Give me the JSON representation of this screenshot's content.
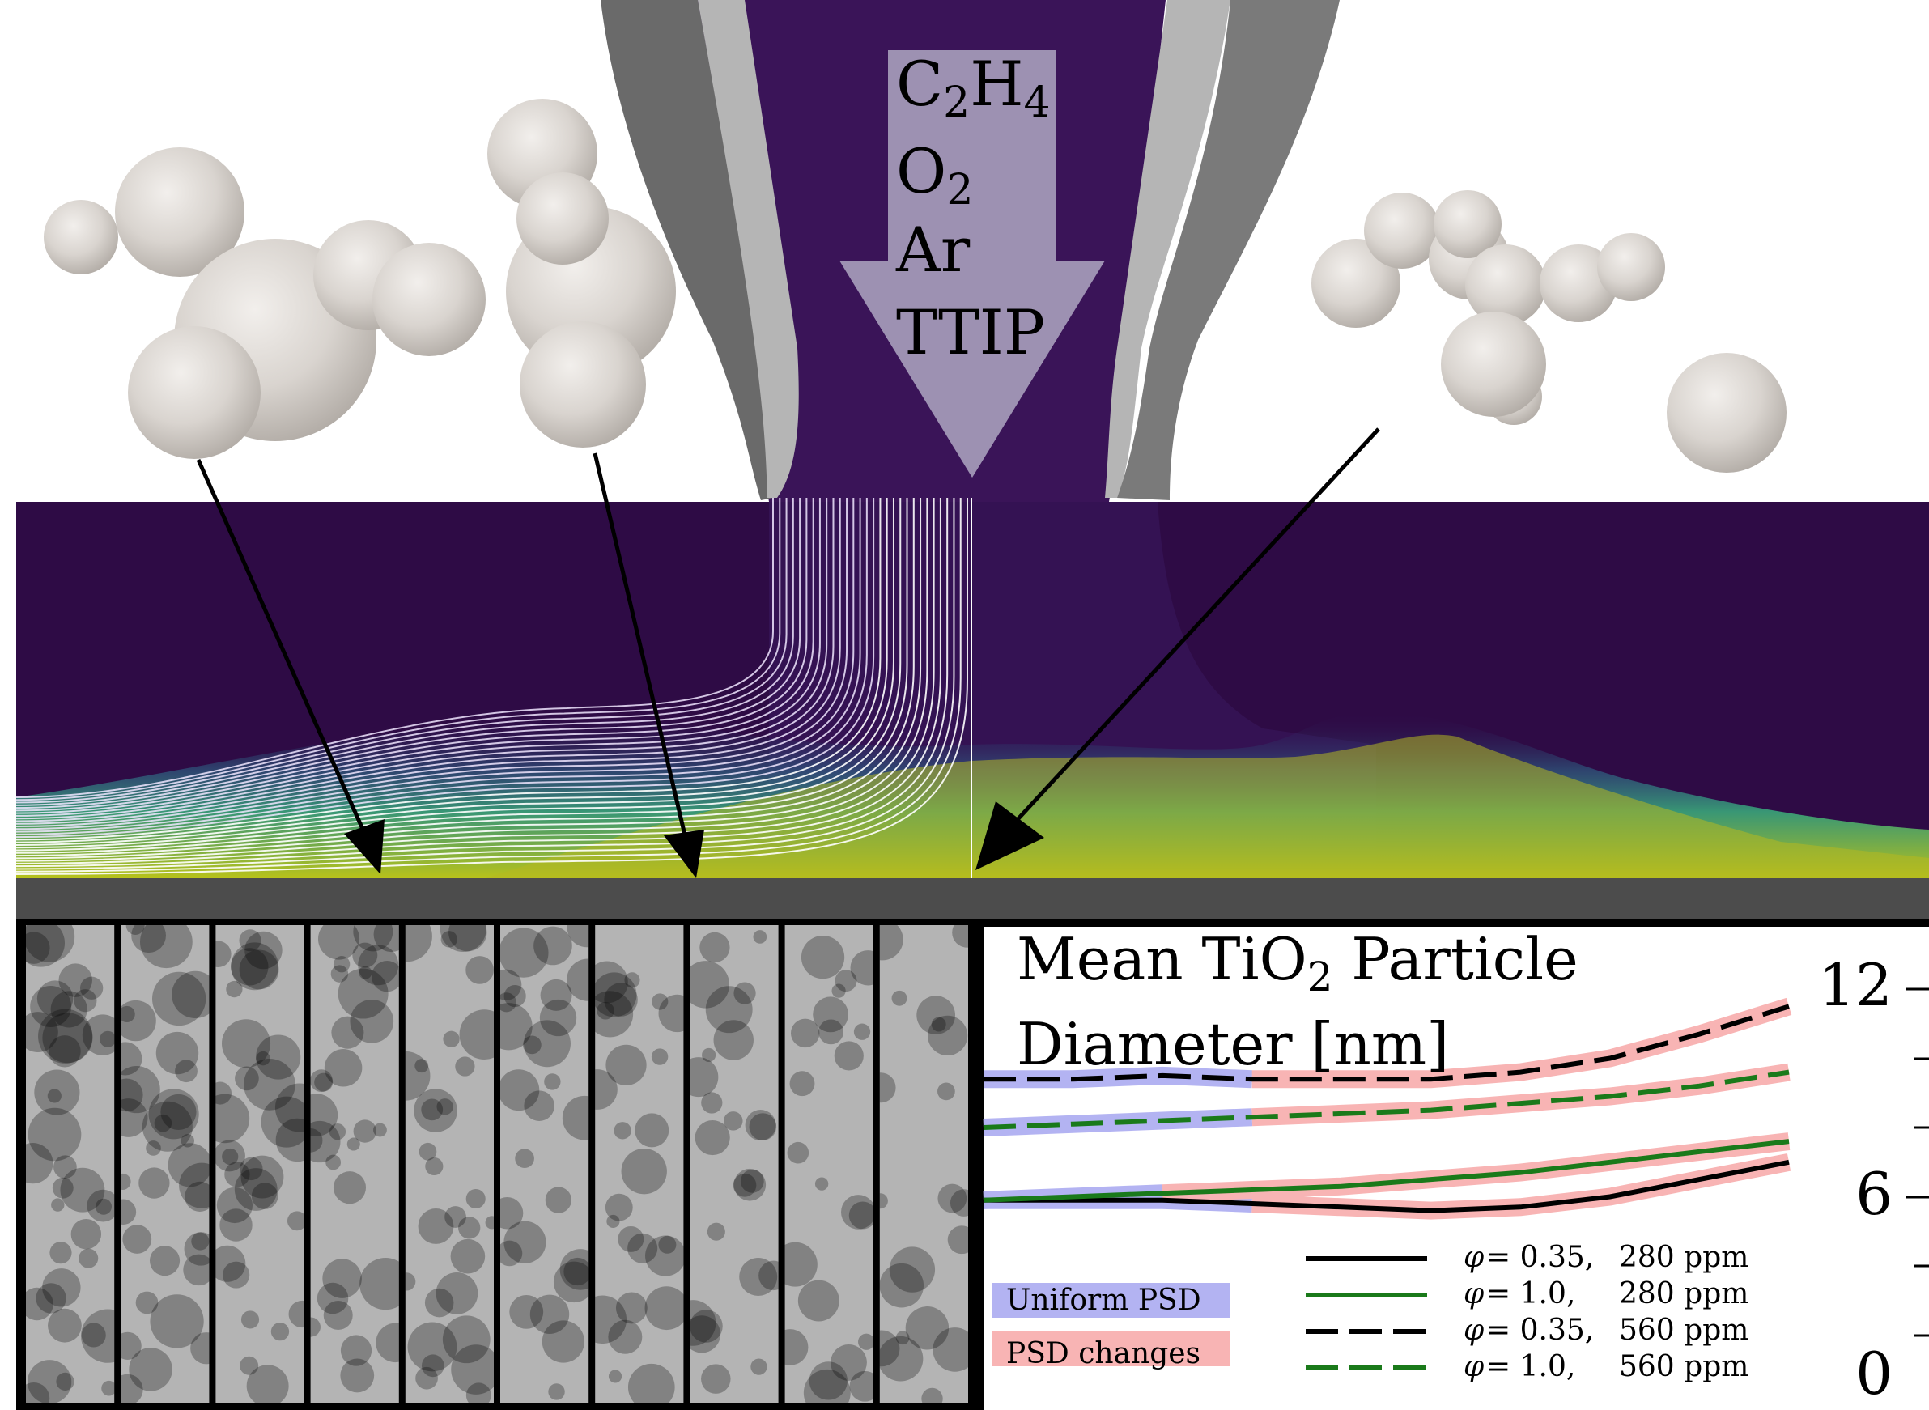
{
  "inflow": {
    "species": [
      {
        "base": "C",
        "sub": "2",
        "base2": "H",
        "sub2": "4"
      },
      {
        "base": "O",
        "sub": "2"
      },
      {
        "base": "Ar"
      },
      {
        "base": "TTIP"
      }
    ]
  },
  "plot": {
    "title_line1_pre": "Mean TiO",
    "title_sub": "2",
    "title_line1_post": " Particle",
    "title_line2": "Diameter [nm]",
    "y_ticks": [
      "12",
      "6",
      "0"
    ],
    "psd_legend": [
      {
        "label": "Uniform PSD",
        "color": "#b3b3f2"
      },
      {
        "label": "PSD changes",
        "color": "#f8b4b4"
      }
    ],
    "line_legend": [
      {
        "phi": "= 0.35,",
        "ppm": "280 ppm",
        "color": "#000000",
        "dashed": false
      },
      {
        "phi": "= 1.0,",
        "ppm": "280 ppm",
        "color": "#1a7a1a",
        "dashed": false
      },
      {
        "phi": "= 0.35,",
        "ppm": "560 ppm",
        "color": "#000000",
        "dashed": true
      },
      {
        "phi": "= 1.0,",
        "ppm": "560 ppm",
        "color": "#1a7a1a",
        "dashed": true
      }
    ],
    "phi_symbol": "φ"
  },
  "chart_data": {
    "type": "line",
    "ylim": [
      0,
      13
    ],
    "y_ticks": [
      0,
      6,
      12
    ],
    "series": [
      {
        "name": "φ = 0.35, 280 ppm",
        "values": [
          5.9,
          5.9,
          5.9,
          5.8,
          5.7,
          5.6,
          5.7,
          6.0,
          6.5,
          7.0
        ]
      },
      {
        "name": "φ = 1.0, 280 ppm",
        "values": [
          5.9,
          6.0,
          6.1,
          6.2,
          6.3,
          6.5,
          6.7,
          7.0,
          7.3,
          7.6
        ]
      },
      {
        "name": "φ = 0.35, 560 ppm",
        "values": [
          9.4,
          9.4,
          9.5,
          9.4,
          9.4,
          9.4,
          9.6,
          10.0,
          10.7,
          11.5
        ]
      },
      {
        "name": "φ = 1.0, 560 ppm",
        "values": [
          8.0,
          8.1,
          8.2,
          8.3,
          8.4,
          8.5,
          8.7,
          8.9,
          9.2,
          9.6
        ]
      }
    ]
  }
}
